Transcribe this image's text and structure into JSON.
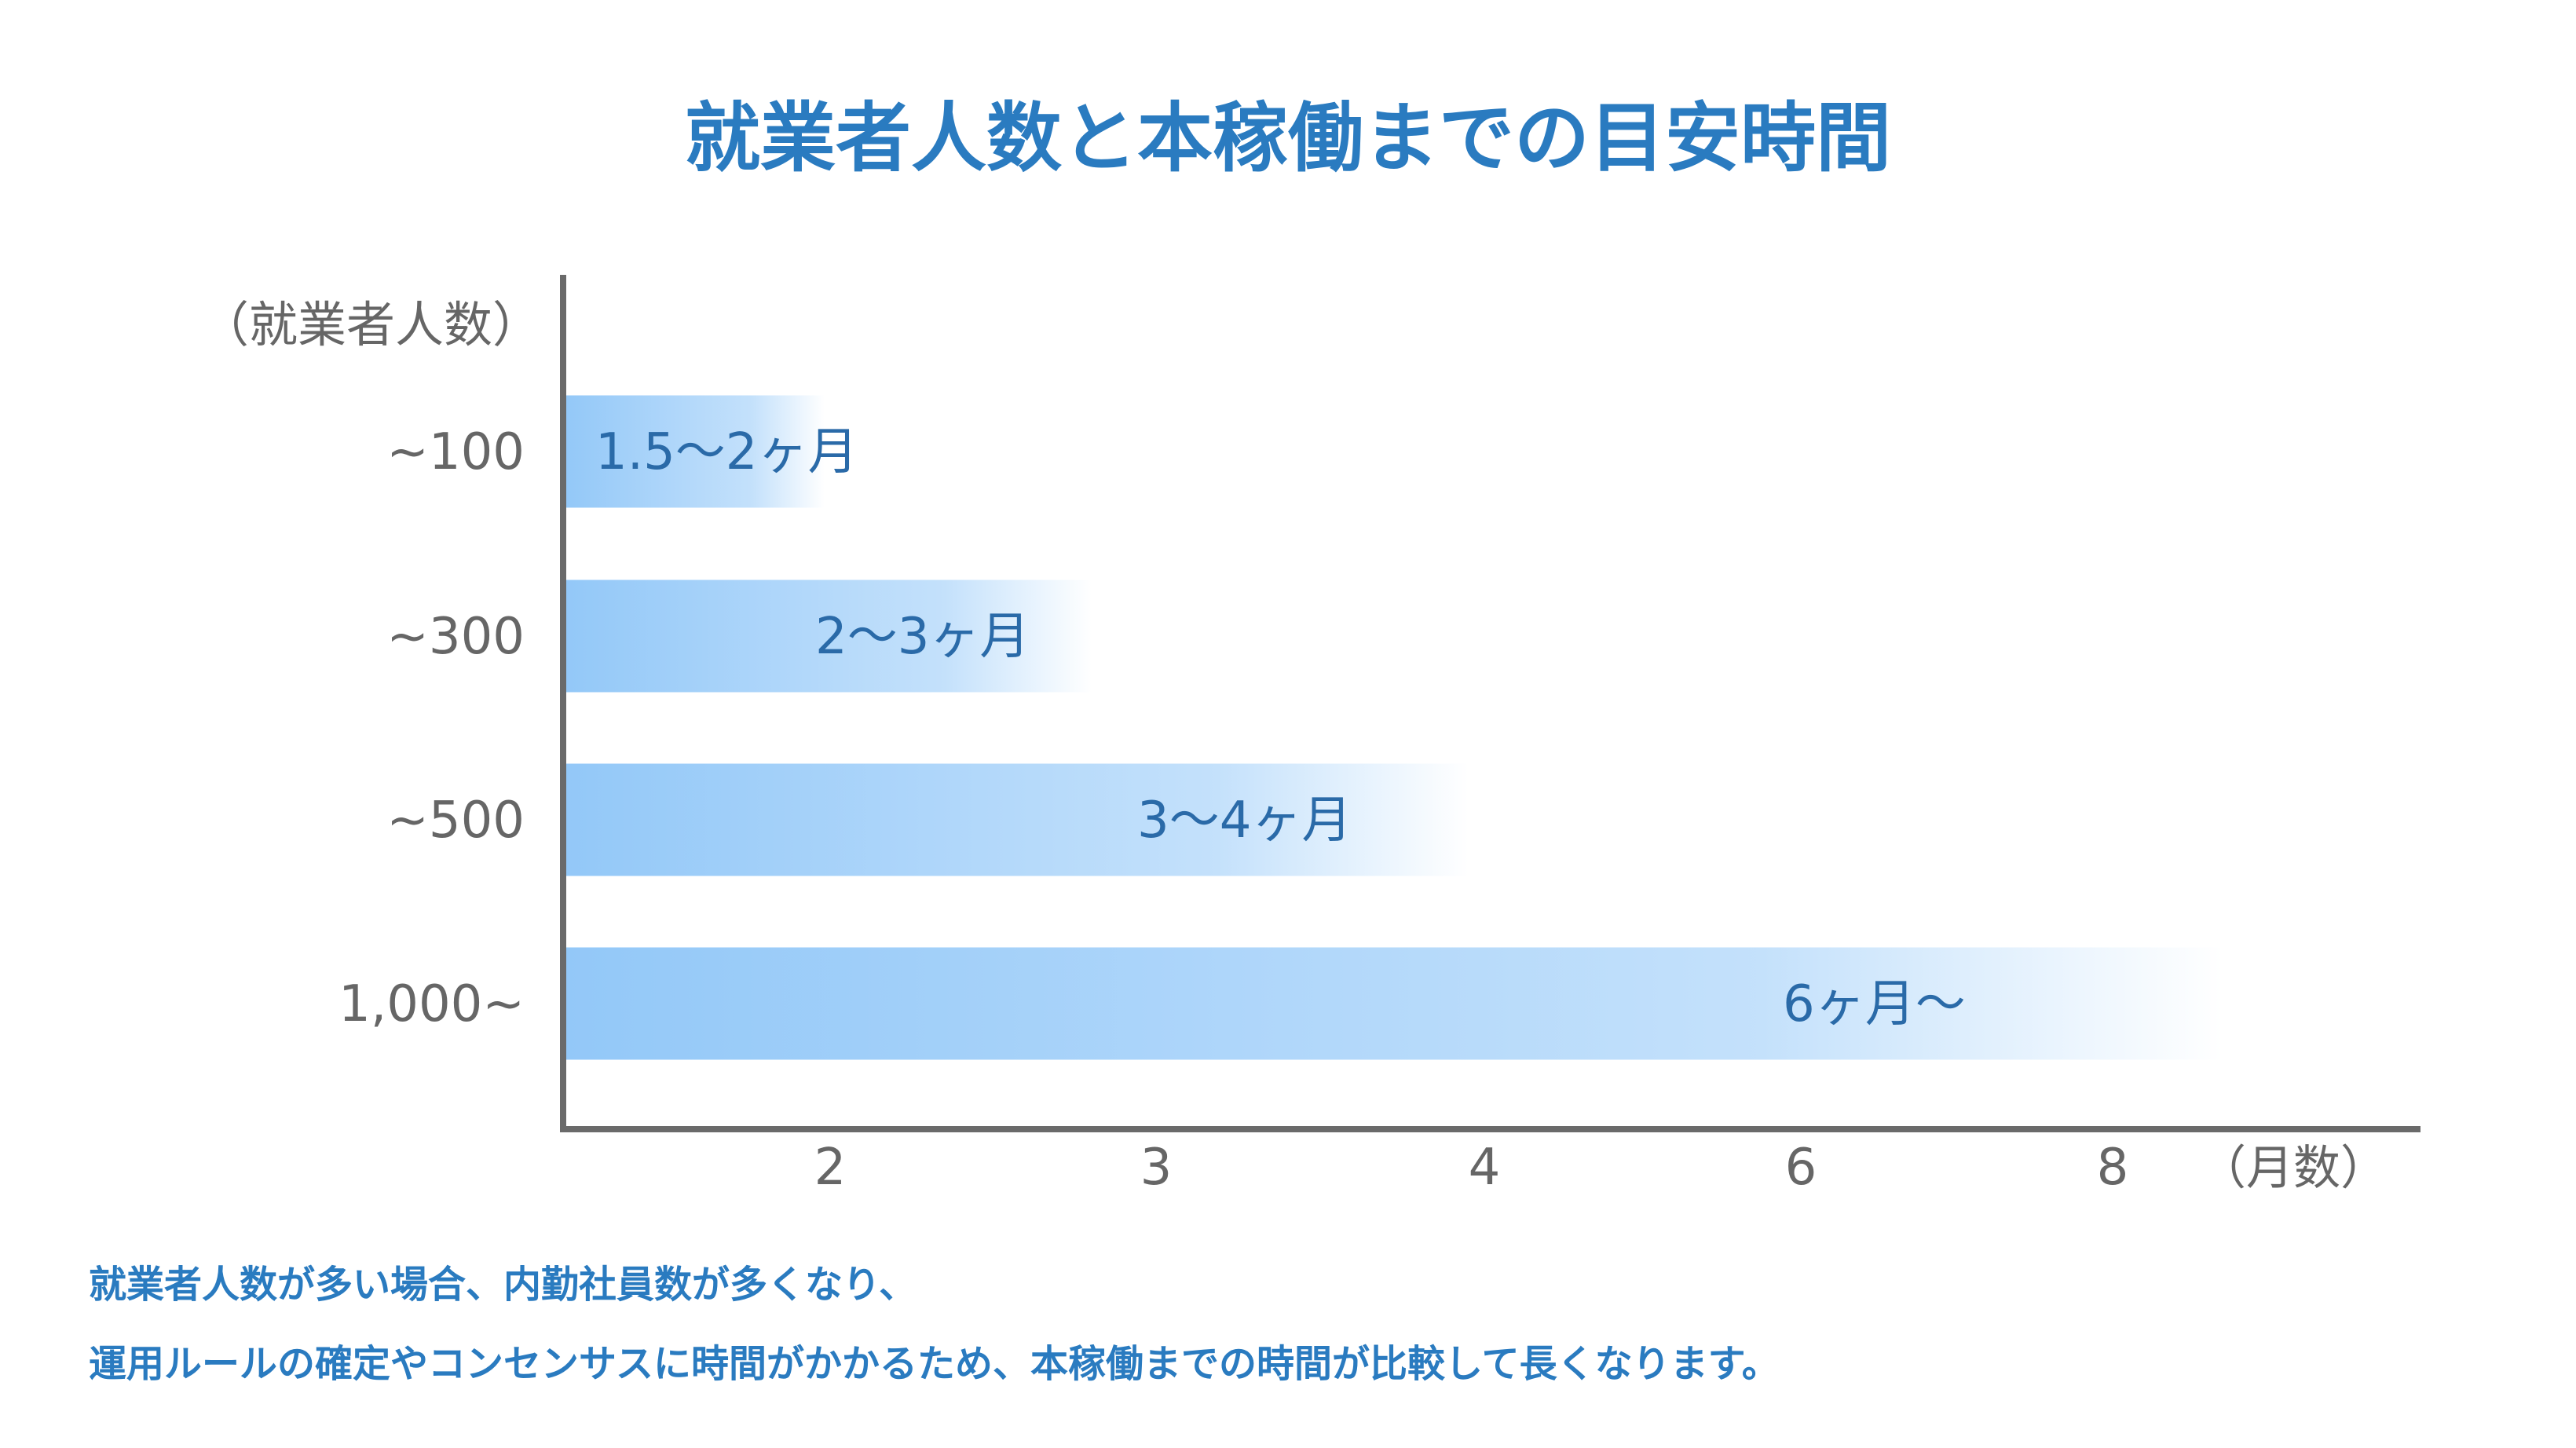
{
  "chart_data": {
    "type": "bar",
    "orientation": "horizontal",
    "title": "就業者人数と本稼働までの目安時間",
    "ylabel": "（就業者人数）",
    "xlabel": "（月数）",
    "x_ticks": [
      "2",
      "3",
      "4",
      "6",
      "8"
    ],
    "categories": [
      "~100",
      "~300",
      "~500",
      "1,000~"
    ],
    "bar_labels": [
      "1.5〜2ヶ月",
      "2〜3ヶ月",
      "3〜4ヶ月",
      "6ヶ月〜"
    ],
    "values": [
      2,
      3,
      4,
      8
    ],
    "bar_color": "#93c8f8",
    "label_color": "#2a6aa8",
    "grid": false,
    "legend": "none"
  },
  "notes": [
    "就業者人数が多い場合、内勤社員数が多くなり、",
    "運用ルールの確定やコンセンサスに時間がかかるため、本稼働までの時間が比較して長くなります。"
  ]
}
